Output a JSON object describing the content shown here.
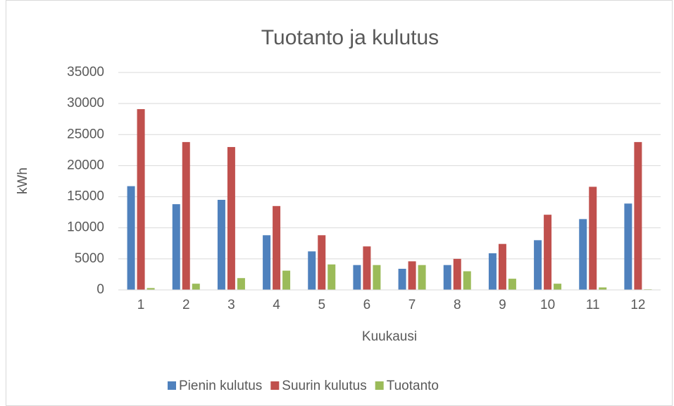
{
  "chart_data": {
    "type": "bar",
    "title": "Tuotanto ja kulutus",
    "x_label": "Kuukausi",
    "y_label": "kWh",
    "categories": [
      "1",
      "2",
      "3",
      "4",
      "5",
      "6",
      "7",
      "8",
      "9",
      "10",
      "11",
      "12"
    ],
    "series": [
      {
        "name": "Pienin kulutus",
        "color": "#4f81bd",
        "values": [
          16700,
          13800,
          14500,
          8800,
          6200,
          4000,
          3400,
          4000,
          5900,
          8000,
          11400,
          13900
        ]
      },
      {
        "name": "Suurin kulutus",
        "color": "#c0504d",
        "values": [
          29100,
          23800,
          23000,
          13500,
          8800,
          7000,
          4600,
          5000,
          7400,
          12100,
          16600,
          23800
        ]
      },
      {
        "name": "Tuotanto",
        "color": "#9bbb59",
        "values": [
          300,
          1000,
          1900,
          3100,
          4100,
          4000,
          4000,
          3000,
          1800,
          1000,
          400,
          100
        ]
      }
    ],
    "ylim": [
      0,
      35000
    ],
    "yticks": [
      0,
      5000,
      10000,
      15000,
      20000,
      25000,
      30000,
      35000
    ],
    "grid": true,
    "legend": "bottom"
  }
}
